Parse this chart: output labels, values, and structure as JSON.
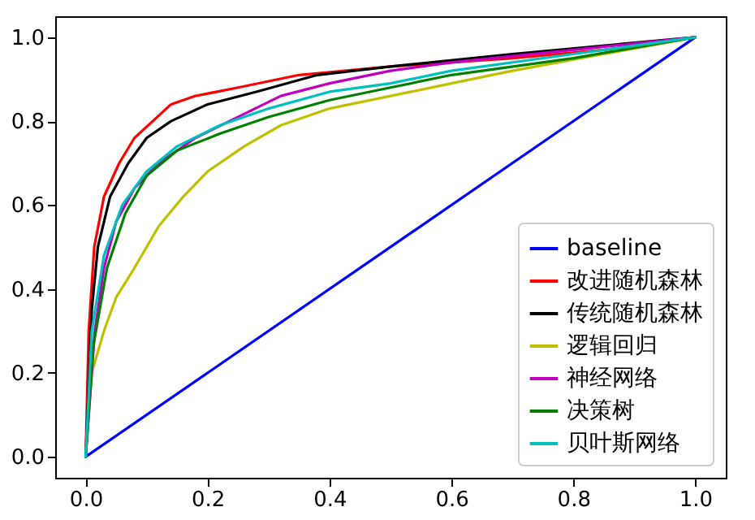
{
  "chart_data": {
    "type": "line",
    "xlim": [
      -0.05,
      1.05
    ],
    "ylim": [
      -0.05,
      1.05
    ],
    "xticks": [
      {
        "value": 0,
        "label": "0.0"
      },
      0.2,
      0.4,
      0.6,
      0.8,
      {
        "value": 1,
        "label": "1.0"
      }
    ],
    "yticks": [
      {
        "value": 0,
        "label": "0.0"
      },
      0.2,
      0.4,
      0.6,
      0.8,
      {
        "value": 1,
        "label": "1.0"
      }
    ],
    "grid": false,
    "legend": "bottom right",
    "marker": "none",
    "line_style": "solid",
    "series": [
      {
        "name": "baseline",
        "color": "#0000ff",
        "x": [
          0,
          1
        ],
        "values": [
          0,
          1
        ]
      },
      {
        "name": "改进随机森林",
        "color": "#ff0000",
        "x": [
          0,
          0.005,
          0.014,
          0.03,
          0.055,
          0.08,
          0.11,
          0.14,
          0.18,
          0.25,
          0.35,
          0.5,
          0.7,
          0.85,
          1
        ],
        "values": [
          0,
          0.3,
          0.5,
          0.62,
          0.7,
          0.76,
          0.8,
          0.84,
          0.86,
          0.88,
          0.91,
          0.93,
          0.95,
          0.97,
          1
        ]
      },
      {
        "name": "传统随机森林",
        "color": "#000000",
        "x": [
          0,
          0.01,
          0.02,
          0.04,
          0.07,
          0.1,
          0.14,
          0.2,
          0.28,
          0.38,
          0.5,
          0.7,
          1
        ],
        "values": [
          0,
          0.35,
          0.5,
          0.62,
          0.7,
          0.76,
          0.8,
          0.84,
          0.87,
          0.91,
          0.93,
          0.96,
          1
        ]
      },
      {
        "name": "逻辑回归",
        "color": "#bfbf00",
        "x": [
          0,
          0.01,
          0.03,
          0.05,
          0.08,
          0.12,
          0.16,
          0.2,
          0.26,
          0.32,
          0.4,
          0.5,
          0.6,
          0.7,
          0.85,
          1
        ],
        "values": [
          0,
          0.2,
          0.3,
          0.38,
          0.45,
          0.55,
          0.62,
          0.68,
          0.74,
          0.79,
          0.83,
          0.86,
          0.89,
          0.92,
          0.96,
          1
        ]
      },
      {
        "name": "神经网络",
        "color": "#bf00bf",
        "x": [
          0,
          0.015,
          0.03,
          0.05,
          0.08,
          0.12,
          0.18,
          0.25,
          0.32,
          0.4,
          0.5,
          0.6,
          0.8,
          1
        ],
        "values": [
          0,
          0.3,
          0.45,
          0.56,
          0.64,
          0.7,
          0.76,
          0.81,
          0.86,
          0.89,
          0.92,
          0.94,
          0.97,
          1
        ]
      },
      {
        "name": "决策树",
        "color": "#008000",
        "x": [
          0,
          0.012,
          0.035,
          0.065,
          0.1,
          0.15,
          0.22,
          0.3,
          0.4,
          0.5,
          0.6,
          0.8,
          1
        ],
        "values": [
          0,
          0.26,
          0.45,
          0.58,
          0.67,
          0.73,
          0.77,
          0.81,
          0.85,
          0.88,
          0.91,
          0.95,
          1
        ]
      },
      {
        "name": "贝叶斯网络",
        "color": "#00bfbf",
        "x": [
          0,
          0.01,
          0.03,
          0.06,
          0.1,
          0.15,
          0.22,
          0.3,
          0.4,
          0.5,
          0.6,
          0.8,
          1
        ],
        "values": [
          0,
          0.3,
          0.48,
          0.6,
          0.68,
          0.74,
          0.79,
          0.83,
          0.87,
          0.89,
          0.92,
          0.96,
          1
        ]
      }
    ]
  }
}
